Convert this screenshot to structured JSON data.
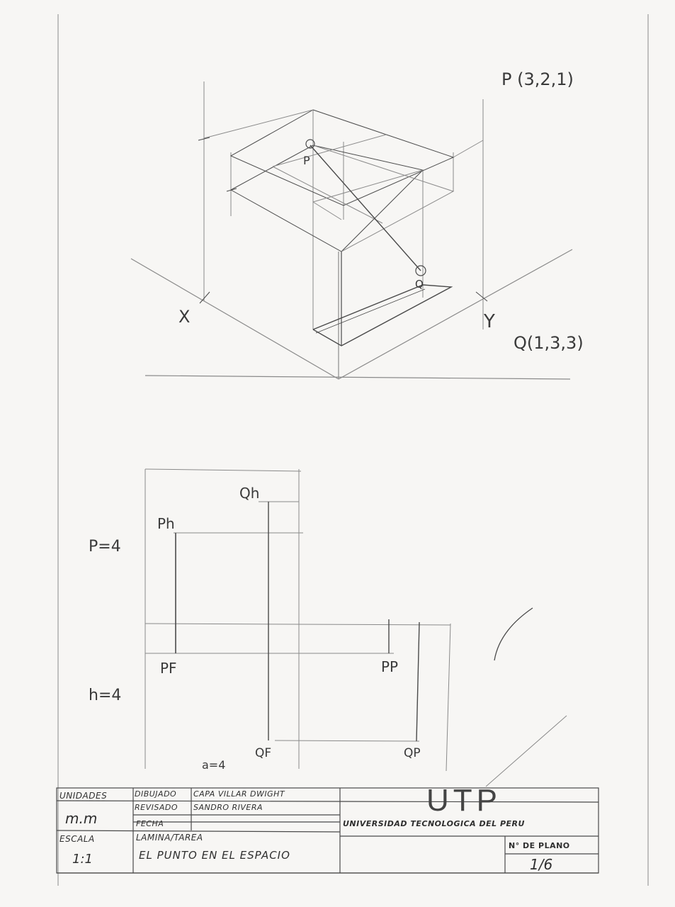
{
  "isometric": {
    "point_p_label": "P (3,2,1)",
    "point_q_label": "Q(1,3,3)",
    "p_marker": "P",
    "q_marker": "Q",
    "axis_x": "X",
    "axis_y": "Y"
  },
  "projection": {
    "qh": "Qh",
    "ph": "Ph",
    "pf": "PF",
    "pp": "PP",
    "qf": "QF",
    "qp": "QP",
    "p_value": "P=4",
    "h_value": "h=4",
    "a_value": "a=4"
  },
  "title_block": {
    "unidades_label": "UNIDADES",
    "unidades_value": "m.m",
    "escala_label": "ESCALA",
    "escala_value": "1:1",
    "dibujado_label": "DIBUJADO",
    "dibujado_value": "CAPA VILLAR DWIGHT",
    "revisado_label": "REVISADO",
    "revisado_value": "SANDRO RIVERA",
    "fecha_label": "FECHA",
    "lamina_label": "LAMINA/TAREA",
    "lamina_value": "EL PUNTO EN EL ESPACIO",
    "logo": "UTP",
    "university": "UNIVERSIDAD TECNOLOGICA DEL PERU",
    "plano_label": "N° DE PLANO",
    "plano_value": "1/6"
  }
}
